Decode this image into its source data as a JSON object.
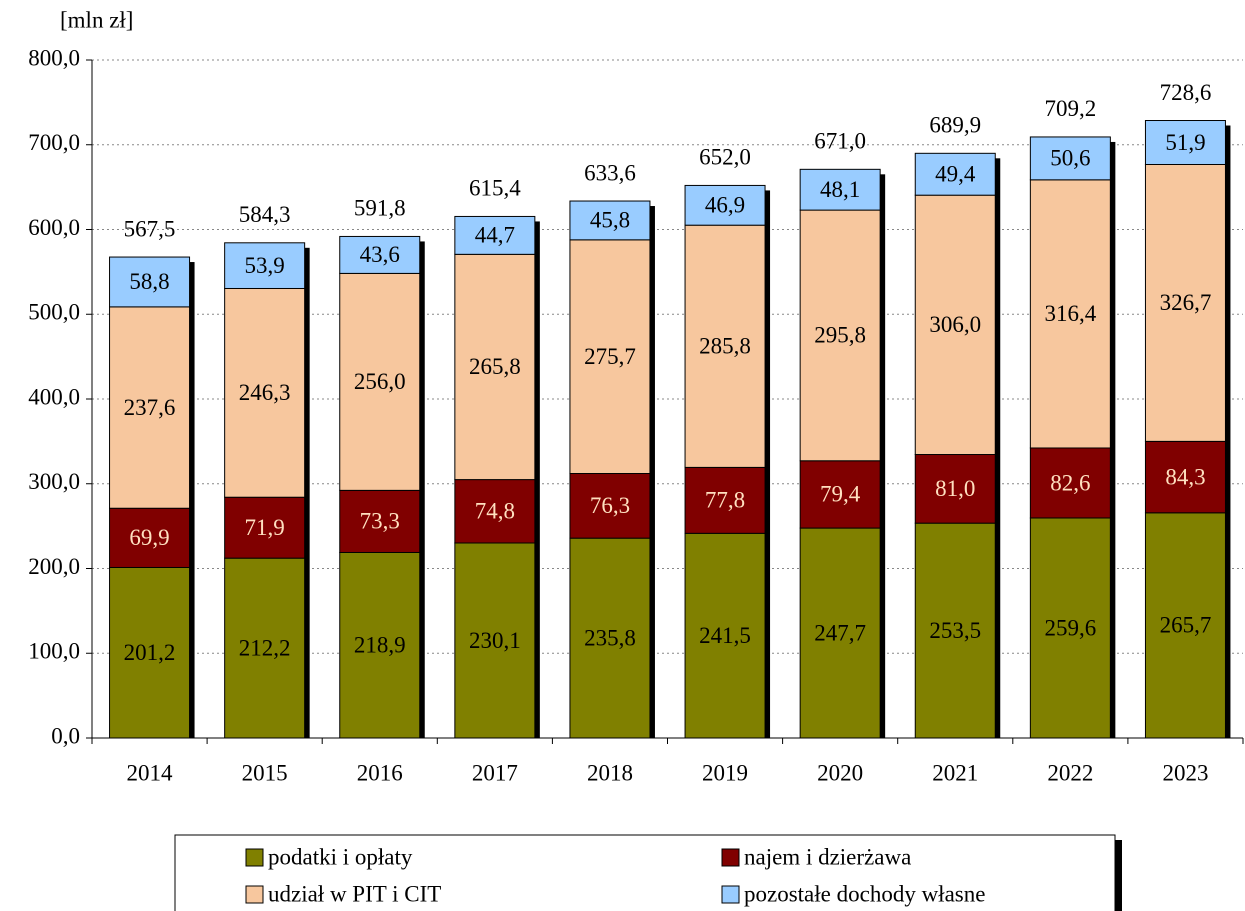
{
  "chart_data": {
    "type": "stacked_bar",
    "y_label": "[mln zł]",
    "categories": [
      "2014",
      "2015",
      "2016",
      "2017",
      "2018",
      "2019",
      "2020",
      "2021",
      "2022",
      "2023"
    ],
    "series": [
      {
        "name": "podatki i opłaty",
        "color": "#808000",
        "label_color": "#000000",
        "values": [
          201.2,
          212.2,
          218.9,
          230.1,
          235.8,
          241.5,
          247.7,
          253.5,
          259.6,
          265.7
        ],
        "value_labels": [
          "201,2",
          "212,2",
          "218,9",
          "230,1",
          "235,8",
          "241,5",
          "247,7",
          "253,5",
          "259,6",
          "265,7"
        ]
      },
      {
        "name": "najem i dzierżawa",
        "color": "#800000",
        "label_color": "#ffe0c0",
        "values": [
          69.9,
          71.9,
          73.3,
          74.8,
          76.3,
          77.8,
          79.4,
          81.0,
          82.6,
          84.3
        ],
        "value_labels": [
          "69,9",
          "71,9",
          "73,3",
          "74,8",
          "76,3",
          "77,8",
          "79,4",
          "81,0",
          "82,6",
          "84,3"
        ]
      },
      {
        "name": "udział w PIT i CIT",
        "color": "#f7c79e",
        "label_color": "#000000",
        "values": [
          237.6,
          246.3,
          256.0,
          265.8,
          275.7,
          285.8,
          295.8,
          306.0,
          316.4,
          326.7
        ],
        "value_labels": [
          "237,6",
          "246,3",
          "256,0",
          "265,8",
          "275,7",
          "285,8",
          "295,8",
          "306,0",
          "316,4",
          "326,7"
        ]
      },
      {
        "name": "pozostałe dochody własne",
        "color": "#99ccff",
        "label_color": "#000000",
        "values": [
          58.8,
          53.9,
          43.6,
          44.7,
          45.8,
          46.9,
          48.1,
          49.4,
          50.6,
          51.9
        ],
        "value_labels": [
          "58,8",
          "53,9",
          "43,6",
          "44,7",
          "45,8",
          "46,9",
          "48,1",
          "49,4",
          "50,6",
          "51,9"
        ]
      }
    ],
    "totals": [
      567.5,
      584.3,
      591.8,
      615.4,
      633.6,
      652.0,
      671.0,
      689.9,
      709.2,
      728.6
    ],
    "totals_labels": [
      "567,5",
      "584,3",
      "591,8",
      "615,4",
      "633,6",
      "652,0",
      "671,0",
      "689,9",
      "709,2",
      "728,6"
    ],
    "ylim": [
      0,
      800
    ],
    "yticks": [
      {
        "value": 0,
        "label": "0,0"
      },
      {
        "value": 100,
        "label": "100,0"
      },
      {
        "value": 200,
        "label": "200,0"
      },
      {
        "value": 300,
        "label": "300,0"
      },
      {
        "value": 400,
        "label": "400,0"
      },
      {
        "value": 500,
        "label": "500,0"
      },
      {
        "value": 600,
        "label": "600,0"
      },
      {
        "value": 700,
        "label": "700,0"
      },
      {
        "value": 800,
        "label": "800,0"
      }
    ],
    "grid": true,
    "legend": "bottom"
  }
}
